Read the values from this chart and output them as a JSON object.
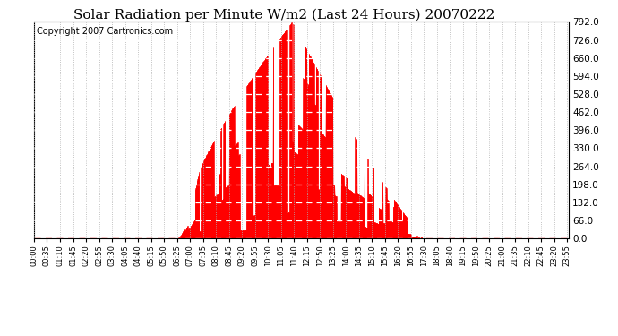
{
  "title": "Solar Radiation per Minute W/m2 (Last 24 Hours) 20070222",
  "copyright": "Copyright 2007 Cartronics.com",
  "y_ticks": [
    0.0,
    66.0,
    132.0,
    198.0,
    264.0,
    330.0,
    396.0,
    462.0,
    528.0,
    594.0,
    660.0,
    726.0,
    792.0
  ],
  "ylim": [
    0.0,
    792.0
  ],
  "bar_color": "#ff0000",
  "bg_color": "#ffffff",
  "plot_bg_color": "#ffffff",
  "grid_color": "#b0b0b0",
  "baseline_color": "#ff0000",
  "title_fontsize": 11,
  "copyright_fontsize": 7,
  "minutes_per_day": 1440,
  "tick_interval": 35
}
